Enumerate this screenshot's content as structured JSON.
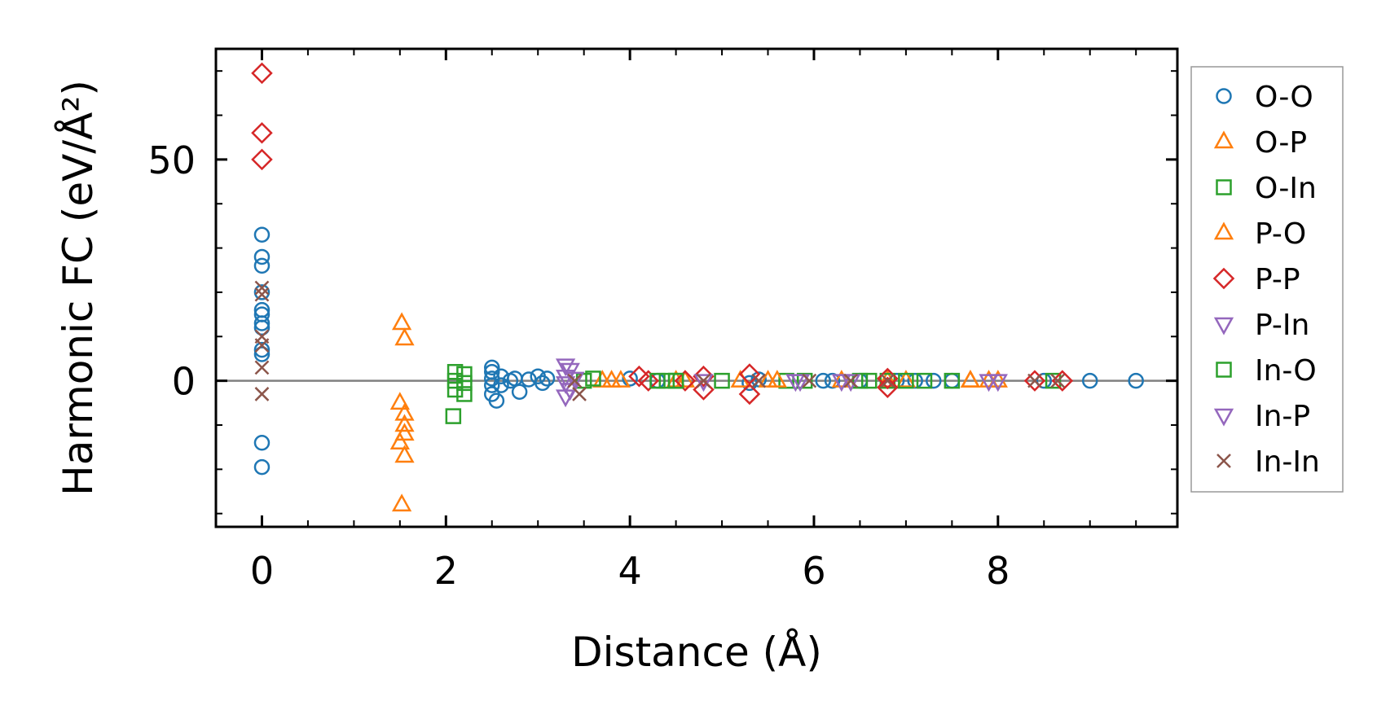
{
  "chart_data": {
    "type": "scatter",
    "xlabel": "Distance (Å)",
    "ylabel": "Harmonic FC (eV/Å²)",
    "xlim": [
      -0.5,
      9.95
    ],
    "ylim": [
      -33,
      75
    ],
    "x_ticks": [
      0,
      2,
      4,
      6,
      8
    ],
    "x_tick_labels": [
      "0",
      "2",
      "4",
      "6",
      "8"
    ],
    "y_ticks": [
      0,
      50
    ],
    "y_tick_labels": [
      "0",
      "50"
    ],
    "zero_line": true,
    "grid": false,
    "legend_position": "outside-right",
    "series": [
      {
        "name": "O-O",
        "marker": "circle",
        "color": "#1f77b4",
        "points": [
          [
            0,
            33
          ],
          [
            0,
            28
          ],
          [
            0,
            26
          ],
          [
            0,
            20
          ],
          [
            0,
            16
          ],
          [
            0,
            15
          ],
          [
            0,
            13
          ],
          [
            0,
            12
          ],
          [
            0,
            7
          ],
          [
            0,
            6
          ],
          [
            0,
            -14
          ],
          [
            0,
            -19.5
          ],
          [
            2.5,
            3
          ],
          [
            2.5,
            2
          ],
          [
            2.5,
            0.5
          ],
          [
            2.5,
            -1
          ],
          [
            2.5,
            -3
          ],
          [
            2.55,
            -4.5
          ],
          [
            2.6,
            1
          ],
          [
            2.6,
            -1
          ],
          [
            2.7,
            0
          ],
          [
            2.75,
            0.5
          ],
          [
            2.8,
            -2.5
          ],
          [
            2.9,
            0.3
          ],
          [
            3.0,
            1
          ],
          [
            3.05,
            -0.5
          ],
          [
            3.1,
            0.5
          ],
          [
            4.0,
            0.5
          ],
          [
            4.3,
            0
          ],
          [
            5.3,
            -0.5
          ],
          [
            5.4,
            0.3
          ],
          [
            6.1,
            0
          ],
          [
            6.2,
            0
          ],
          [
            6.5,
            0
          ],
          [
            6.9,
            0
          ],
          [
            7.1,
            0
          ],
          [
            7.3,
            0
          ],
          [
            7.5,
            0
          ],
          [
            8.5,
            0
          ],
          [
            9.0,
            0
          ],
          [
            9.5,
            0
          ]
        ]
      },
      {
        "name": "O-P",
        "marker": "triangle-up",
        "color": "#ff7f0e",
        "points": [
          [
            1.52,
            13
          ],
          [
            1.55,
            9.5
          ],
          [
            1.5,
            -5
          ],
          [
            1.55,
            -7.5
          ],
          [
            1.55,
            -10
          ],
          [
            1.55,
            -12
          ],
          [
            1.5,
            -14
          ],
          [
            1.55,
            -17
          ],
          [
            1.52,
            -28
          ],
          [
            3.7,
            0
          ],
          [
            3.8,
            0
          ],
          [
            4.5,
            0
          ],
          [
            5.2,
            0
          ],
          [
            5.5,
            0
          ],
          [
            6.8,
            0
          ],
          [
            7.7,
            0
          ],
          [
            7.9,
            0
          ]
        ]
      },
      {
        "name": "O-In",
        "marker": "square",
        "color": "#2ca02c",
        "points": [
          [
            2.1,
            2
          ],
          [
            2.1,
            0
          ],
          [
            2.1,
            -2
          ],
          [
            2.2,
            1.5
          ],
          [
            2.2,
            -0.5
          ],
          [
            2.2,
            -3
          ],
          [
            2.08,
            -8
          ],
          [
            3.5,
            0
          ],
          [
            3.6,
            0.5
          ],
          [
            4.4,
            0
          ],
          [
            4.5,
            0
          ],
          [
            5.0,
            0
          ],
          [
            5.7,
            0
          ],
          [
            6.5,
            0
          ],
          [
            6.8,
            0
          ],
          [
            7.2,
            0
          ],
          [
            7.5,
            0
          ],
          [
            8.6,
            0
          ]
        ]
      },
      {
        "name": "P-O",
        "marker": "triangle-up",
        "color": "#ff7f0e",
        "points": [
          [
            3.9,
            0
          ],
          [
            4.6,
            0
          ],
          [
            5.6,
            0
          ],
          [
            6.3,
            0
          ],
          [
            7.0,
            0
          ],
          [
            7.7,
            0
          ],
          [
            8.0,
            0
          ]
        ]
      },
      {
        "name": "P-P",
        "marker": "diamond",
        "color": "#d62728",
        "points": [
          [
            0,
            69.5
          ],
          [
            0,
            56
          ],
          [
            0,
            50
          ],
          [
            4.1,
            1
          ],
          [
            4.2,
            0
          ],
          [
            4.6,
            0
          ],
          [
            4.8,
            1
          ],
          [
            4.8,
            -2
          ],
          [
            5.3,
            1.5
          ],
          [
            5.3,
            -3
          ],
          [
            6.8,
            0.5
          ],
          [
            6.8,
            -1.5
          ],
          [
            8.4,
            0
          ],
          [
            8.7,
            0
          ]
        ]
      },
      {
        "name": "P-In",
        "marker": "triangle-down",
        "color": "#9467bd",
        "points": [
          [
            3.3,
            3.5
          ],
          [
            3.35,
            2.5
          ],
          [
            3.3,
            1
          ],
          [
            3.3,
            -0.5
          ],
          [
            3.35,
            -2
          ],
          [
            3.3,
            -3.5
          ],
          [
            5.8,
            0
          ],
          [
            6.3,
            0
          ],
          [
            7.9,
            0
          ]
        ]
      },
      {
        "name": "In-O",
        "marker": "square",
        "color": "#2ca02c",
        "points": [
          [
            4.3,
            0
          ],
          [
            4.5,
            0
          ],
          [
            5.9,
            0
          ],
          [
            6.6,
            0
          ],
          [
            7.0,
            0
          ]
        ]
      },
      {
        "name": "In-P",
        "marker": "triangle-down",
        "color": "#9467bd",
        "points": [
          [
            3.4,
            0.5
          ],
          [
            4.8,
            0
          ],
          [
            5.85,
            0
          ],
          [
            6.4,
            0
          ],
          [
            8.0,
            0
          ]
        ]
      },
      {
        "name": "In-In",
        "marker": "x",
        "color": "#8c564b",
        "points": [
          [
            0,
            21
          ],
          [
            0,
            19.5
          ],
          [
            0,
            10
          ],
          [
            0,
            8
          ],
          [
            0,
            3
          ],
          [
            0,
            -3
          ],
          [
            3.4,
            0
          ],
          [
            3.45,
            -3
          ],
          [
            4.8,
            0
          ],
          [
            5.4,
            0
          ],
          [
            5.95,
            0
          ],
          [
            6.4,
            0
          ],
          [
            6.8,
            0
          ],
          [
            8.4,
            0
          ],
          [
            8.65,
            0
          ]
        ]
      }
    ]
  }
}
